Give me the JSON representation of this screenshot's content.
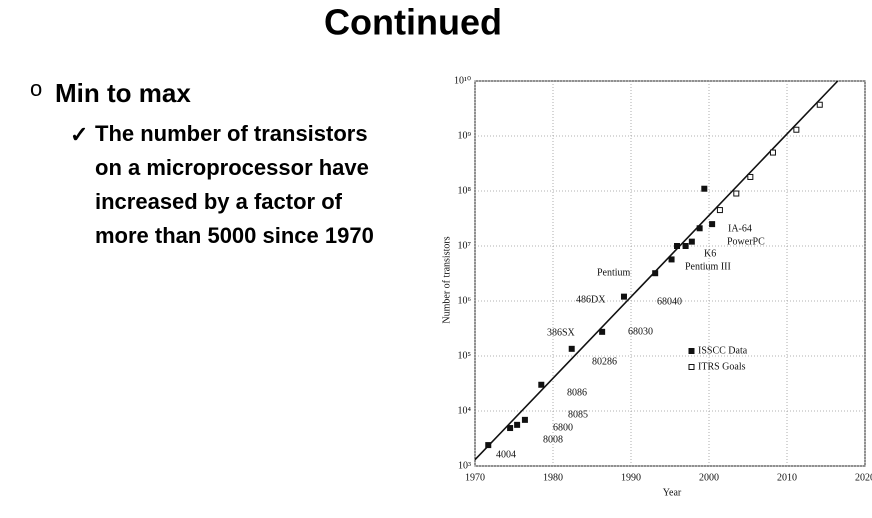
{
  "slide": {
    "title": "Continued",
    "bullet": "Min to max",
    "subbullet_lines": [
      "The number of transistors",
      "on a microprocessor have",
      "increased by a factor of",
      "more than 5000 since 1970"
    ]
  },
  "chart_data": {
    "type": "scatter",
    "x_label": "Year",
    "y_label": "Number of transistors",
    "log_y": true,
    "grid": true,
    "legend": "lower-right",
    "xlim": [
      1970,
      2020
    ],
    "xticks": [
      1970,
      1980,
      1990,
      2000,
      2010,
      2020
    ],
    "ylim": [
      1000,
      10000000000
    ],
    "yticks": [
      {
        "value": 1000,
        "label": "10³"
      },
      {
        "value": 10000,
        "label": "10⁴"
      },
      {
        "value": 100000,
        "label": "10⁵"
      },
      {
        "value": 1000000,
        "label": "10⁶"
      },
      {
        "value": 10000000,
        "label": "10⁷"
      },
      {
        "value": 100000000,
        "label": "10⁸"
      },
      {
        "value": 1000000000,
        "label": "10⁹"
      },
      {
        "value": 10000000000,
        "label": "10¹⁰"
      }
    ],
    "series": [
      {
        "name": "ISSCC Data",
        "marker": "filled",
        "color": "#111111",
        "x": [
          1971.7,
          1974.5,
          1975.4,
          1976.4,
          1978.5,
          1982.4,
          1986.3,
          1989.1,
          1993.1,
          1995.2,
          1995.9,
          1997.0,
          1997.8,
          1998.8,
          1999.4,
          2000.4
        ],
        "values": [
          2400,
          4900,
          5600,
          6900,
          30000,
          135000,
          275000,
          1200000,
          3200000,
          5700000,
          10000000,
          10000000,
          12000000,
          21000000,
          110000000,
          25000000
        ]
      },
      {
        "name": "ITRS Goals",
        "marker": "open",
        "color": "#111111",
        "x": [
          2001.4,
          2003.5,
          2005.3,
          2008.2,
          2011.2,
          2014.2
        ],
        "values": [
          45000000,
          90000000,
          180000000,
          500000000,
          1300000000,
          3700000000
        ]
      }
    ],
    "trendline": {
      "x": [
        1970,
        2016.5
      ],
      "values": [
        1300,
        10000000000
      ]
    },
    "annotations": [
      "4004",
      "8008",
      "6800",
      "8085",
      "8086",
      "80286",
      "386SX",
      "68030",
      "486DX",
      "68040",
      "Pentium",
      "K6",
      "Pentium III",
      "PowerPC",
      "IA-64"
    ]
  }
}
